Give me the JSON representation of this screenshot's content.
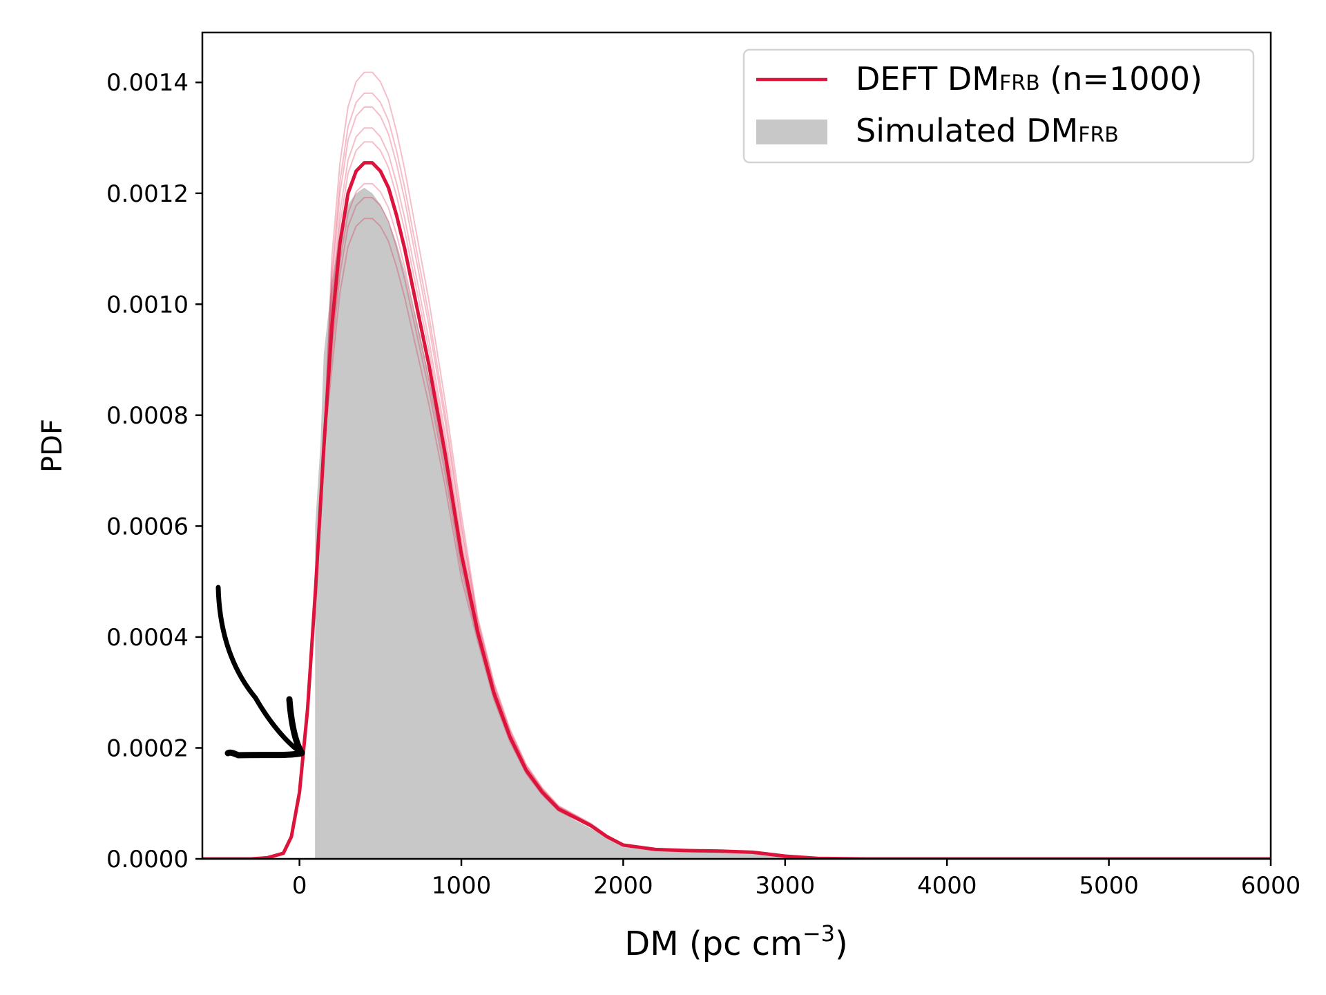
{
  "chart_data": {
    "type": "line",
    "xlabel": "DM (pc cm",
    "xlabel_sup": "−3",
    "xlabel_end": ")",
    "ylabel": "PDF",
    "xlim": [
      -600,
      6000
    ],
    "ylim": [
      0,
      0.00149
    ],
    "grid": false,
    "legend_position": "top-right",
    "x_ticks": [
      0,
      1000,
      2000,
      3000,
      4000,
      5000,
      6000
    ],
    "x_tick_labels": [
      "0",
      "1000",
      "2000",
      "3000",
      "4000",
      "5000",
      "6000"
    ],
    "y_ticks": [
      0,
      0.0002,
      0.0004,
      0.0006,
      0.0008,
      0.001,
      0.0012,
      0.0014
    ],
    "y_tick_labels": [
      "0.0000",
      "0.0002",
      "0.0004",
      "0.0006",
      "0.0008",
      "0.0010",
      "0.0012",
      "0.0014"
    ],
    "legend": [
      {
        "label": "DEFT DM",
        "subscript": "FRB",
        "suffix": " (n=1000)",
        "kind": "line",
        "color": "#dc143c"
      },
      {
        "label": "Simulated DM",
        "subscript": "FRB",
        "suffix": "",
        "kind": "patch",
        "color": "#c8c8c8"
      }
    ],
    "series": [
      {
        "name": "DEFT DM_FRB (n=1000)",
        "kind": "line",
        "color": "#dc143c",
        "x": [
          -600,
          -300,
          -200,
          -100,
          -50,
          0,
          50,
          100,
          150,
          200,
          250,
          300,
          350,
          400,
          450,
          500,
          550,
          600,
          650,
          700,
          750,
          800,
          850,
          900,
          950,
          1000,
          1100,
          1200,
          1300,
          1400,
          1500,
          1600,
          1700,
          1800,
          1900,
          2000,
          2200,
          2400,
          2600,
          2800,
          3000,
          3200,
          3500,
          4000,
          6000
        ],
        "y": [
          0,
          0,
          2e-06,
          1e-05,
          4e-05,
          0.00012,
          0.00027,
          0.00049,
          0.00074,
          0.00096,
          0.00111,
          0.0012,
          0.00124,
          0.001255,
          0.001255,
          0.00124,
          0.00121,
          0.00116,
          0.0011,
          0.00103,
          0.00096,
          0.00089,
          0.00081,
          0.00073,
          0.00064,
          0.00055,
          0.00041,
          0.0003,
          0.00022,
          0.00016,
          0.00012,
          9e-05,
          7.5e-05,
          6e-05,
          4e-05,
          2.5e-05,
          1.7e-05,
          1.5e-05,
          1.4e-05,
          1.2e-05,
          5e-06,
          1e-06,
          0,
          0,
          0
        ]
      },
      {
        "name": "Simulated DM_FRB",
        "kind": "area",
        "color": "#c8c8c8",
        "x": [
          96,
          97,
          130,
          150,
          200,
          250,
          300,
          350,
          400,
          450,
          500,
          550,
          600,
          650,
          700,
          750,
          800,
          850,
          900,
          950,
          1000,
          1100,
          1200,
          1300,
          1400,
          1500,
          1600,
          1700,
          1800,
          1900,
          2000,
          2200,
          2400,
          2600,
          2800,
          3000,
          3200,
          3400
        ],
        "y": [
          0,
          0.0006,
          0.00075,
          0.00091,
          0.00104,
          0.00113,
          0.00118,
          0.0012,
          0.00121,
          0.0012,
          0.00118,
          0.00115,
          0.00111,
          0.00106,
          0.001,
          0.00094,
          0.00087,
          0.0008,
          0.00072,
          0.00064,
          0.00056,
          0.00042,
          0.00031,
          0.00022,
          0.00016,
          0.000115,
          9e-05,
          7e-05,
          5.5e-05,
          4e-05,
          2.8e-05,
          1.8e-05,
          1.4e-05,
          1.2e-05,
          1e-05,
          4e-06,
          1e-06,
          0
        ]
      }
    ]
  }
}
